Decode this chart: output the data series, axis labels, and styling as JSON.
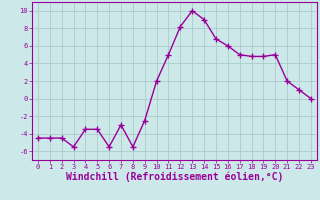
{
  "x": [
    0,
    1,
    2,
    3,
    4,
    5,
    6,
    7,
    8,
    9,
    10,
    11,
    12,
    13,
    14,
    15,
    16,
    17,
    18,
    19,
    20,
    21,
    22,
    23
  ],
  "y": [
    -4.5,
    -4.5,
    -4.5,
    -5.5,
    -3.5,
    -3.5,
    -5.5,
    -3.0,
    -5.5,
    -2.5,
    2.0,
    5.0,
    8.2,
    10.0,
    9.0,
    6.8,
    6.0,
    5.0,
    4.8,
    4.8,
    5.0,
    2.0,
    1.0,
    0.0
  ],
  "line_color": "#990099",
  "marker": "+",
  "marker_color": "#990099",
  "bg_color": "#cce8e8",
  "grid_color": "#aacccc",
  "xlabel": "Windchill (Refroidissement éolien,°C)",
  "xlabel_color": "#990099",
  "xlim": [
    -0.5,
    23.5
  ],
  "ylim": [
    -7,
    11
  ],
  "yticks": [
    -6,
    -4,
    -2,
    0,
    2,
    4,
    6,
    8,
    10
  ],
  "xticks": [
    0,
    1,
    2,
    3,
    4,
    5,
    6,
    7,
    8,
    9,
    10,
    11,
    12,
    13,
    14,
    15,
    16,
    17,
    18,
    19,
    20,
    21,
    22,
    23
  ],
  "tick_color": "#990099",
  "tick_labelsize": 5.0,
  "xlabel_fontsize": 7.0,
  "line_width": 1.0,
  "marker_size": 4,
  "marker_linewidth": 1.0
}
